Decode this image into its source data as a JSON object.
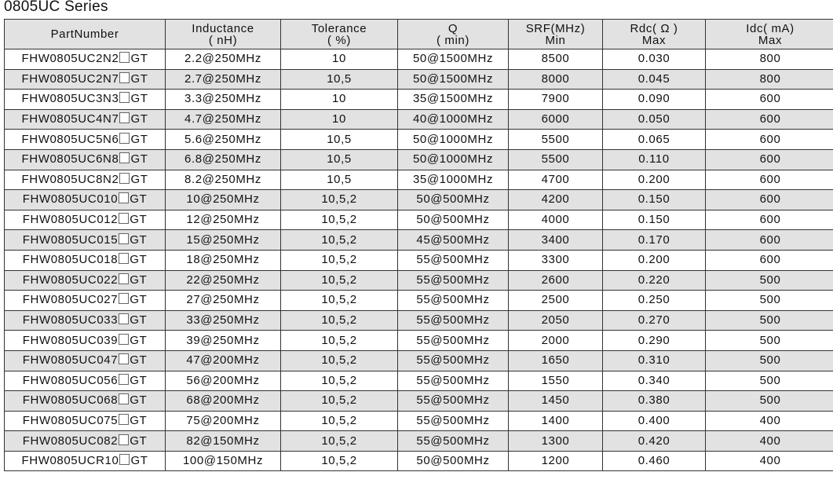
{
  "title": "0805UC Series",
  "headers": [
    {
      "line1": "PartNumber",
      "line2": ""
    },
    {
      "line1": "Inductance",
      "line2": "( nH)"
    },
    {
      "line1": "Tolerance",
      "line2": "( %)"
    },
    {
      "line1": "Q",
      "line2": "( min)"
    },
    {
      "line1": "SRF(MHz)",
      "line2": "Min"
    },
    {
      "line1": "Rdc( Ω )",
      "line2": "Max"
    },
    {
      "line1": "Idc( mA)",
      "line2": "Max"
    }
  ],
  "rows": [
    {
      "pn_prefix": "FHW0805UC2N2",
      "pn_suffix": "GT",
      "inductance": "2.2@250MHz",
      "tolerance": "10",
      "q": "50@1500MHz",
      "srf": "8500",
      "rdc": "0.030",
      "idc": "800"
    },
    {
      "pn_prefix": "FHW0805UC2N7",
      "pn_suffix": "GT",
      "inductance": "2.7@250MHz",
      "tolerance": "10,5",
      "q": "50@1500MHz",
      "srf": "8000",
      "rdc": "0.045",
      "idc": "800"
    },
    {
      "pn_prefix": "FHW0805UC3N3",
      "pn_suffix": "GT",
      "inductance": "3.3@250MHz",
      "tolerance": "10",
      "q": "35@1500MHz",
      "srf": "7900",
      "rdc": "0.090",
      "idc": "600"
    },
    {
      "pn_prefix": "FHW0805UC4N7",
      "pn_suffix": "GT",
      "inductance": "4.7@250MHz",
      "tolerance": "10",
      "q": "40@1000MHz",
      "srf": "6000",
      "rdc": "0.050",
      "idc": "600"
    },
    {
      "pn_prefix": "FHW0805UC5N6",
      "pn_suffix": "GT",
      "inductance": "5.6@250MHz",
      "tolerance": "10,5",
      "q": "50@1000MHz",
      "srf": "5500",
      "rdc": "0.065",
      "idc": "600"
    },
    {
      "pn_prefix": "FHW0805UC6N8",
      "pn_suffix": "GT",
      "inductance": "6.8@250MHz",
      "tolerance": "10,5",
      "q": "50@1000MHz",
      "srf": "5500",
      "rdc": "0.110",
      "idc": "600"
    },
    {
      "pn_prefix": "FHW0805UC8N2",
      "pn_suffix": "GT",
      "inductance": "8.2@250MHz",
      "tolerance": "10,5",
      "q": "35@1000MHz",
      "srf": "4700",
      "rdc": "0.200",
      "idc": "600"
    },
    {
      "pn_prefix": "FHW0805UC010",
      "pn_suffix": "GT",
      "inductance": "10@250MHz",
      "tolerance": "10,5,2",
      "q": "50@500MHz",
      "srf": "4200",
      "rdc": "0.150",
      "idc": "600"
    },
    {
      "pn_prefix": "FHW0805UC012",
      "pn_suffix": "GT",
      "inductance": "12@250MHz",
      "tolerance": "10,5,2",
      "q": "50@500MHz",
      "srf": "4000",
      "rdc": "0.150",
      "idc": "600"
    },
    {
      "pn_prefix": "FHW0805UC015",
      "pn_suffix": "GT",
      "inductance": "15@250MHz",
      "tolerance": "10,5,2",
      "q": "45@500MHz",
      "srf": "3400",
      "rdc": "0.170",
      "idc": "600"
    },
    {
      "pn_prefix": "FHW0805UC018",
      "pn_suffix": "GT",
      "inductance": "18@250MHz",
      "tolerance": "10,5,2",
      "q": "55@500MHz",
      "srf": "3300",
      "rdc": "0.200",
      "idc": "600"
    },
    {
      "pn_prefix": "FHW0805UC022",
      "pn_suffix": "GT",
      "inductance": "22@250MHz",
      "tolerance": "10,5,2",
      "q": "55@500MHz",
      "srf": "2600",
      "rdc": "0.220",
      "idc": "500"
    },
    {
      "pn_prefix": "FHW0805UC027",
      "pn_suffix": "GT",
      "inductance": "27@250MHz",
      "tolerance": "10,5,2",
      "q": "55@500MHz",
      "srf": "2500",
      "rdc": "0.250",
      "idc": "500"
    },
    {
      "pn_prefix": "FHW0805UC033",
      "pn_suffix": "GT",
      "inductance": "33@250MHz",
      "tolerance": "10,5,2",
      "q": "55@500MHz",
      "srf": "2050",
      "rdc": "0.270",
      "idc": "500"
    },
    {
      "pn_prefix": "FHW0805UC039",
      "pn_suffix": "GT",
      "inductance": "39@250MHz",
      "tolerance": "10,5,2",
      "q": "55@500MHz",
      "srf": "2000",
      "rdc": "0.290",
      "idc": "500"
    },
    {
      "pn_prefix": "FHW0805UC047",
      "pn_suffix": "GT",
      "inductance": "47@200MHz",
      "tolerance": "10,5,2",
      "q": "55@500MHz",
      "srf": "1650",
      "rdc": "0.310",
      "idc": "500"
    },
    {
      "pn_prefix": "FHW0805UC056",
      "pn_suffix": "GT",
      "inductance": "56@200MHz",
      "tolerance": "10,5,2",
      "q": "55@500MHz",
      "srf": "1550",
      "rdc": "0.340",
      "idc": "500"
    },
    {
      "pn_prefix": "FHW0805UC068",
      "pn_suffix": "GT",
      "inductance": "68@200MHz",
      "tolerance": "10,5,2",
      "q": "55@500MHz",
      "srf": "1450",
      "rdc": "0.380",
      "idc": "500"
    },
    {
      "pn_prefix": "FHW0805UC075",
      "pn_suffix": "GT",
      "inductance": "75@200MHz",
      "tolerance": "10,5,2",
      "q": "55@500MHz",
      "srf": "1400",
      "rdc": "0.400",
      "idc": "400"
    },
    {
      "pn_prefix": "FHW0805UC082",
      "pn_suffix": "GT",
      "inductance": "82@150MHz",
      "tolerance": "10,5,2",
      "q": "55@500MHz",
      "srf": "1300",
      "rdc": "0.420",
      "idc": "400"
    },
    {
      "pn_prefix": "FHW0805UCR10",
      "pn_suffix": "GT",
      "inductance": "100@150MHz",
      "tolerance": "10,5,2",
      "q": "50@500MHz",
      "srf": "1200",
      "rdc": "0.460",
      "idc": "400"
    }
  ]
}
